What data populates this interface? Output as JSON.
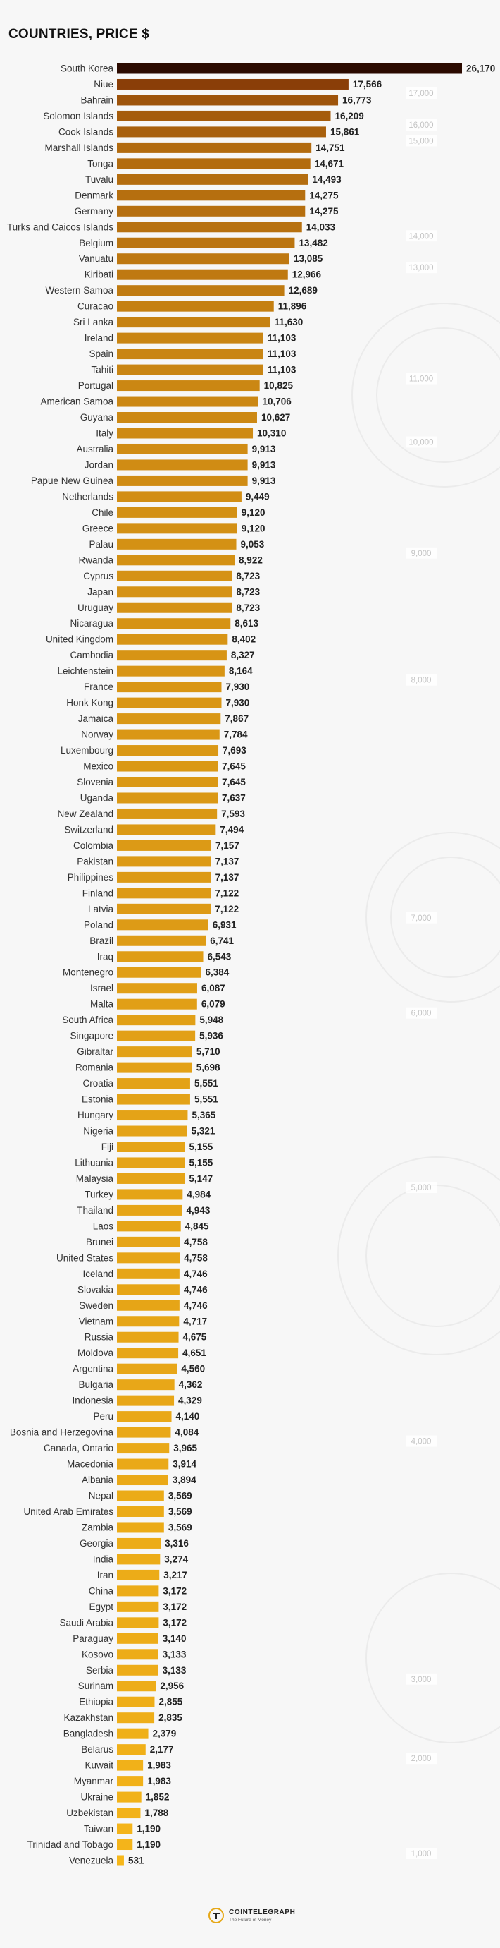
{
  "title": "COUNTRIES, PRICE $",
  "footer": {
    "brand": "COINTELEGRAPH",
    "tagline": "The Future of Money",
    "logo_icon": "cointelegraph-logo-icon"
  },
  "colors": {
    "top": "#2b0a00",
    "dark": "#8a3e08",
    "light": "#f6b71a",
    "scale_text": "#c4c4c4",
    "background": "#f7f7f7"
  },
  "chart_data": {
    "type": "bar",
    "orientation": "horizontal",
    "title": "COUNTRIES, PRICE $",
    "xlabel": "",
    "ylabel": "",
    "scale_labels": [
      "17,000",
      "16,000",
      "15,000",
      "14,000",
      "13,000",
      "11,000",
      "10,000",
      "9,000",
      "8,000",
      "7,000",
      "6,000",
      "5,000",
      "4,000",
      "3,000",
      "2,000",
      "1,000"
    ],
    "categories": [
      "South Korea",
      "Niue",
      "Bahrain",
      "Solomon Islands",
      "Cook Islands",
      "Marshall Islands",
      "Tonga",
      "Tuvalu",
      "Denmark",
      "Germany",
      "Turks and Caicos Islands",
      "Belgium",
      "Vanuatu",
      "Kiribati",
      "Western Samoa",
      "Curacao",
      "Sri Lanka",
      "Ireland",
      "Spain",
      "Tahiti",
      "Portugal",
      "American Samoa",
      "Guyana",
      "Italy",
      "Australia",
      "Jordan",
      "Papue New Guinea",
      "Netherlands",
      "Chile",
      "Greece",
      "Palau",
      "Rwanda",
      "Cyprus",
      "Japan",
      "Uruguay",
      "Nicaragua",
      "United Kingdom",
      "Cambodia",
      "Leichtenstein",
      "France",
      "Honk Kong",
      "Jamaica",
      "Norway",
      "Luxembourg",
      "Mexico",
      "Slovenia",
      "Uganda",
      "New Zealand",
      "Switzerland",
      "Colombia",
      "Pakistan",
      "Philippines",
      "Finland",
      "Latvia",
      "Poland",
      "Brazil",
      "Iraq",
      "Montenegro",
      "Israel",
      "Malta",
      "South Africa",
      "Singapore",
      "Gibraltar",
      "Romania",
      "Croatia",
      "Estonia",
      "Hungary",
      "Nigeria",
      "Fiji",
      "Lithuania",
      "Malaysia",
      "Turkey",
      "Thailand",
      "Laos",
      "Brunei",
      "United States",
      "Iceland",
      "Slovakia",
      "Sweden",
      "Vietnam",
      "Russia",
      "Moldova",
      "Argentina",
      "Bulgaria",
      "Indonesia",
      "Peru",
      "Bosnia and Herzegovina",
      "Canada, Ontario",
      "Macedonia",
      "Albania",
      "Nepal",
      "United Arab Emirates",
      "Zambia",
      "Georgia",
      "India",
      "Iran",
      "China",
      "Egypt",
      "Saudi Arabia",
      "Paraguay",
      "Kosovo",
      "Serbia",
      "Surinam",
      "Ethiopia",
      "Kazakhstan",
      "Bangladesh",
      "Belarus",
      "Kuwait",
      "Myanmar",
      "Ukraine",
      "Uzbekistan",
      "Taiwan",
      "Trinidad and Tobago",
      "Venezuela"
    ],
    "values": [
      26170,
      17566,
      16773,
      16209,
      15861,
      14751,
      14671,
      14493,
      14275,
      14275,
      14033,
      13482,
      13085,
      12966,
      12689,
      11896,
      11630,
      11103,
      11103,
      11103,
      10825,
      10706,
      10627,
      10310,
      9913,
      9913,
      9913,
      9449,
      9120,
      9120,
      9053,
      8922,
      8723,
      8723,
      8723,
      8613,
      8402,
      8327,
      8164,
      7930,
      7930,
      7867,
      7784,
      7693,
      7645,
      7645,
      7637,
      7593,
      7494,
      7157,
      7137,
      7137,
      7122,
      7122,
      6931,
      6741,
      6543,
      6384,
      6087,
      6079,
      5948,
      5936,
      5710,
      5698,
      5551,
      5551,
      5365,
      5321,
      5155,
      5155,
      5147,
      4984,
      4943,
      4845,
      4758,
      4758,
      4746,
      4746,
      4746,
      4717,
      4675,
      4651,
      4560,
      4362,
      4329,
      4140,
      4084,
      3965,
      3914,
      3894,
      3569,
      3569,
      3569,
      3316,
      3274,
      3217,
      3172,
      3172,
      3172,
      3140,
      3133,
      3133,
      2956,
      2855,
      2835,
      2379,
      2177,
      1983,
      1983,
      1852,
      1788,
      1190,
      1190,
      531
    ],
    "value_labels": [
      "26,170",
      "17,566",
      "16,773",
      "16,209",
      "15,861",
      "14,751",
      "14,671",
      "14,493",
      "14,275",
      "14,275",
      "14,033",
      "13,482",
      "13,085",
      "12,966",
      "12,689",
      "11,896",
      "11,630",
      "11,103",
      "11,103",
      "11,103",
      "10,825",
      "10,706",
      "10,627",
      "10,310",
      "9,913",
      "9,913",
      "9,913",
      "9,449",
      "9,120",
      "9,120",
      "9,053",
      "8,922",
      "8,723",
      "8,723",
      "8,723",
      "8,613",
      "8,402",
      "8,327",
      "8,164",
      "7,930",
      "7,930",
      "7,867",
      "7,784",
      "7,693",
      "7,645",
      "7,645",
      "7,637",
      "7,593",
      "7,494",
      "7,157",
      "7,137",
      "7,137",
      "7,122",
      "7,122",
      "6,931",
      "6,741",
      "6,543",
      "6,384",
      "6,087",
      "6,079",
      "5,948",
      "5,936",
      "5,710",
      "5,698",
      "5,551",
      "5,551",
      "5,365",
      "5,321",
      "5,155",
      "5,155",
      "5,147",
      "4,984",
      "4,943",
      "4,845",
      "4,758",
      "4,758",
      "4,746",
      "4,746",
      "4,746",
      "4,717",
      "4,675",
      "4,651",
      "4,560",
      "4,362",
      "4,329",
      "4,140",
      "4,084",
      "3,965",
      "3,914",
      "3,894",
      "3,569",
      "3,569",
      "3,569",
      "3,316",
      "3,274",
      "3,217",
      "3,172",
      "3,172",
      "3,172",
      "3,140",
      "3,133",
      "3,133",
      "2,956",
      "2,855",
      "2,835",
      "2,379",
      "2,177",
      "1,983",
      "1,983",
      "1,852",
      "1,788",
      "1,190",
      "1,190",
      "531"
    ],
    "legend": false,
    "grid": false
  }
}
